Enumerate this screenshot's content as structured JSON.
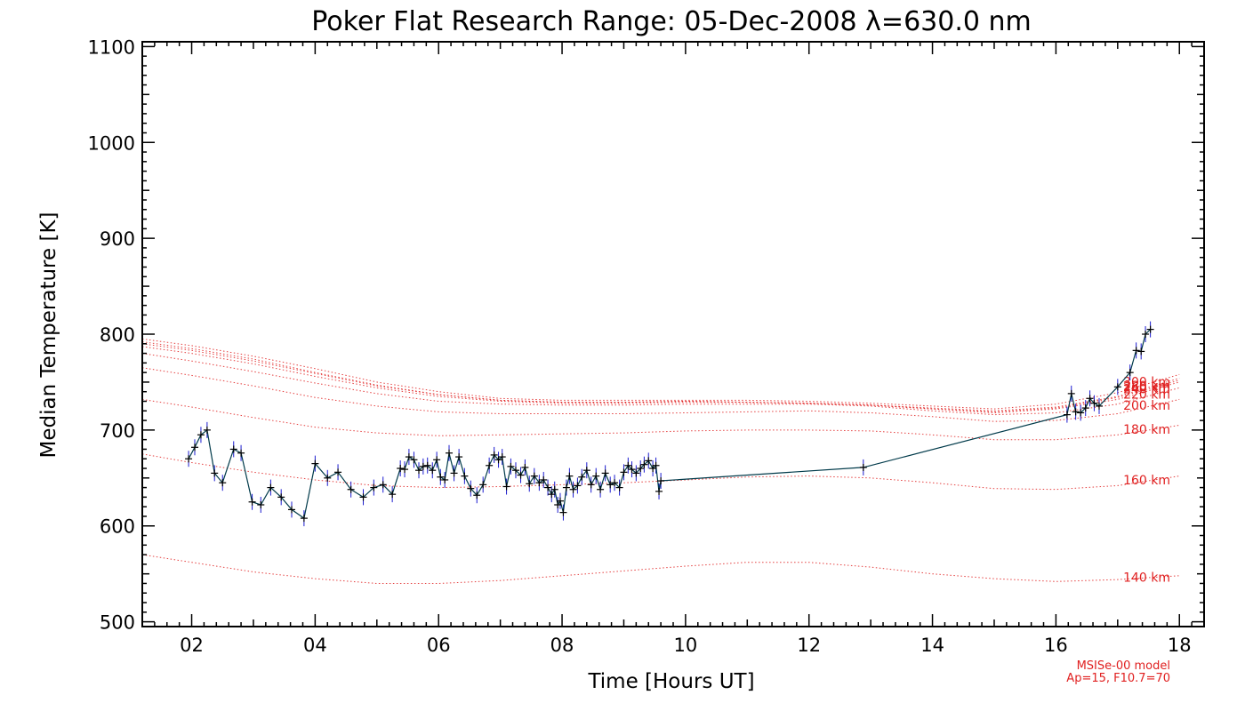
{
  "colors": {
    "data_line": "#003a4a",
    "error_bar": "#1b1bd0",
    "marker": "#000000",
    "model": "#e02020",
    "axes": "#000000"
  },
  "chart_data": {
    "type": "line",
    "title": "Poker Flat Research Range: 05-Dec-2008 λ=630.0 nm",
    "xlabel": "Time [Hours UT]",
    "ylabel": "Median Temperature [K]",
    "xlim": [
      1.2,
      18.4
    ],
    "ylim": [
      495,
      1105
    ],
    "xticks": [
      2,
      4,
      6,
      8,
      10,
      12,
      14,
      16,
      18
    ],
    "xtick_labels": [
      "02",
      "04",
      "06",
      "08",
      "10",
      "12",
      "14",
      "16",
      "18"
    ],
    "yticks": [
      500,
      600,
      700,
      800,
      900,
      1000,
      1100
    ],
    "ytick_labels": [
      "500",
      "600",
      "700",
      "800",
      "900",
      "1000",
      "1100"
    ],
    "grid": false,
    "series": [
      {
        "kind": "measurement",
        "x": [
          1.95,
          2.05,
          2.15,
          2.25,
          2.37,
          2.5,
          2.68,
          2.8,
          2.98,
          3.12,
          3.28,
          3.45,
          3.62,
          3.82,
          4.0,
          4.2,
          4.37,
          4.58,
          4.78,
          4.95,
          5.1,
          5.25,
          5.38,
          5.45,
          5.52,
          5.6,
          5.68,
          5.75,
          5.82,
          5.9,
          5.97,
          6.03,
          6.1,
          6.17,
          6.25,
          6.33,
          6.42,
          6.52,
          6.62,
          6.72,
          6.82,
          6.9,
          6.97,
          7.03,
          7.1,
          7.17,
          7.25,
          7.33,
          7.4,
          7.47,
          7.55,
          7.63,
          7.7,
          7.77,
          7.83,
          7.88,
          7.93,
          7.97,
          8.02,
          8.07,
          8.12,
          8.18,
          8.25,
          8.32,
          8.4,
          8.47,
          8.55,
          8.62,
          8.7,
          8.78,
          8.85,
          8.93,
          9.0,
          9.07,
          9.13,
          9.2,
          9.27,
          9.33,
          9.4,
          9.47,
          9.52,
          9.57,
          9.6,
          12.88,
          16.18,
          16.25,
          16.32,
          16.4,
          16.48,
          16.55,
          16.62,
          16.7,
          17.0,
          17.2,
          17.3,
          17.38,
          17.45,
          17.53
        ],
        "y": [
          670,
          682,
          695,
          700,
          655,
          645,
          680,
          676,
          625,
          622,
          640,
          630,
          617,
          608,
          665,
          650,
          656,
          638,
          630,
          640,
          643,
          633,
          660,
          659,
          672,
          669,
          658,
          662,
          663,
          658,
          669,
          651,
          648,
          676,
          655,
          672,
          652,
          639,
          632,
          643,
          663,
          674,
          669,
          672,
          641,
          662,
          658,
          653,
          661,
          644,
          652,
          645,
          648,
          640,
          633,
          638,
          622,
          626,
          614,
          640,
          652,
          638,
          642,
          651,
          658,
          643,
          652,
          638,
          655,
          643,
          645,
          640,
          656,
          663,
          659,
          655,
          660,
          664,
          668,
          660,
          663,
          636,
          647,
          661,
          716,
          738,
          719,
          718,
          723,
          733,
          728,
          725,
          745,
          760,
          783,
          782,
          800,
          805
        ]
      }
    ],
    "model": {
      "name": "MSISe-00 model",
      "ap_f107": "Ap=15, F10.7=70",
      "x": [
        1.2,
        2,
        3,
        4,
        5,
        6,
        7,
        8,
        9,
        10,
        11,
        12,
        13,
        14,
        15,
        16,
        17,
        18
      ],
      "curves": [
        {
          "label": "140 km",
          "y": [
            570,
            562,
            552,
            545,
            540,
            540,
            543,
            548,
            553,
            558,
            562,
            562,
            557,
            550,
            545,
            542,
            544,
            548
          ]
        },
        {
          "label": "160 km",
          "y": [
            675,
            666,
            656,
            648,
            642,
            640,
            641,
            643,
            645,
            648,
            651,
            652,
            650,
            645,
            639,
            638,
            642,
            652
          ]
        },
        {
          "label": "180 km",
          "y": [
            732,
            724,
            713,
            703,
            697,
            694,
            695,
            696,
            697,
            699,
            700,
            700,
            699,
            695,
            690,
            690,
            695,
            705
          ]
        },
        {
          "label": "200 km",
          "y": [
            765,
            757,
            746,
            734,
            725,
            719,
            717,
            717,
            717,
            718,
            719,
            720,
            718,
            714,
            709,
            710,
            717,
            732
          ]
        },
        {
          "label": "220 km",
          "y": [
            780,
            772,
            761,
            749,
            738,
            730,
            727,
            726,
            726,
            727,
            727,
            727,
            725,
            720,
            716,
            718,
            727,
            744
          ]
        },
        {
          "label": "240 km",
          "y": [
            787,
            780,
            769,
            756,
            744,
            735,
            730,
            728,
            728,
            729,
            729,
            728,
            726,
            722,
            718,
            722,
            732,
            750
          ]
        },
        {
          "label": "260 km",
          "y": [
            790,
            783,
            772,
            759,
            746,
            737,
            731,
            729,
            729,
            730,
            729,
            728,
            726,
            722,
            719,
            723,
            734,
            752
          ]
        },
        {
          "label": "280 km",
          "y": [
            792,
            785,
            774,
            760,
            747,
            737,
            731,
            729,
            729,
            730,
            729,
            728,
            726,
            723,
            720,
            724,
            735,
            754
          ]
        },
        {
          "label": "300 km",
          "y": [
            795,
            788,
            777,
            764,
            750,
            740,
            733,
            731,
            731,
            731,
            731,
            730,
            728,
            725,
            722,
            727,
            739,
            758
          ]
        }
      ]
    }
  }
}
